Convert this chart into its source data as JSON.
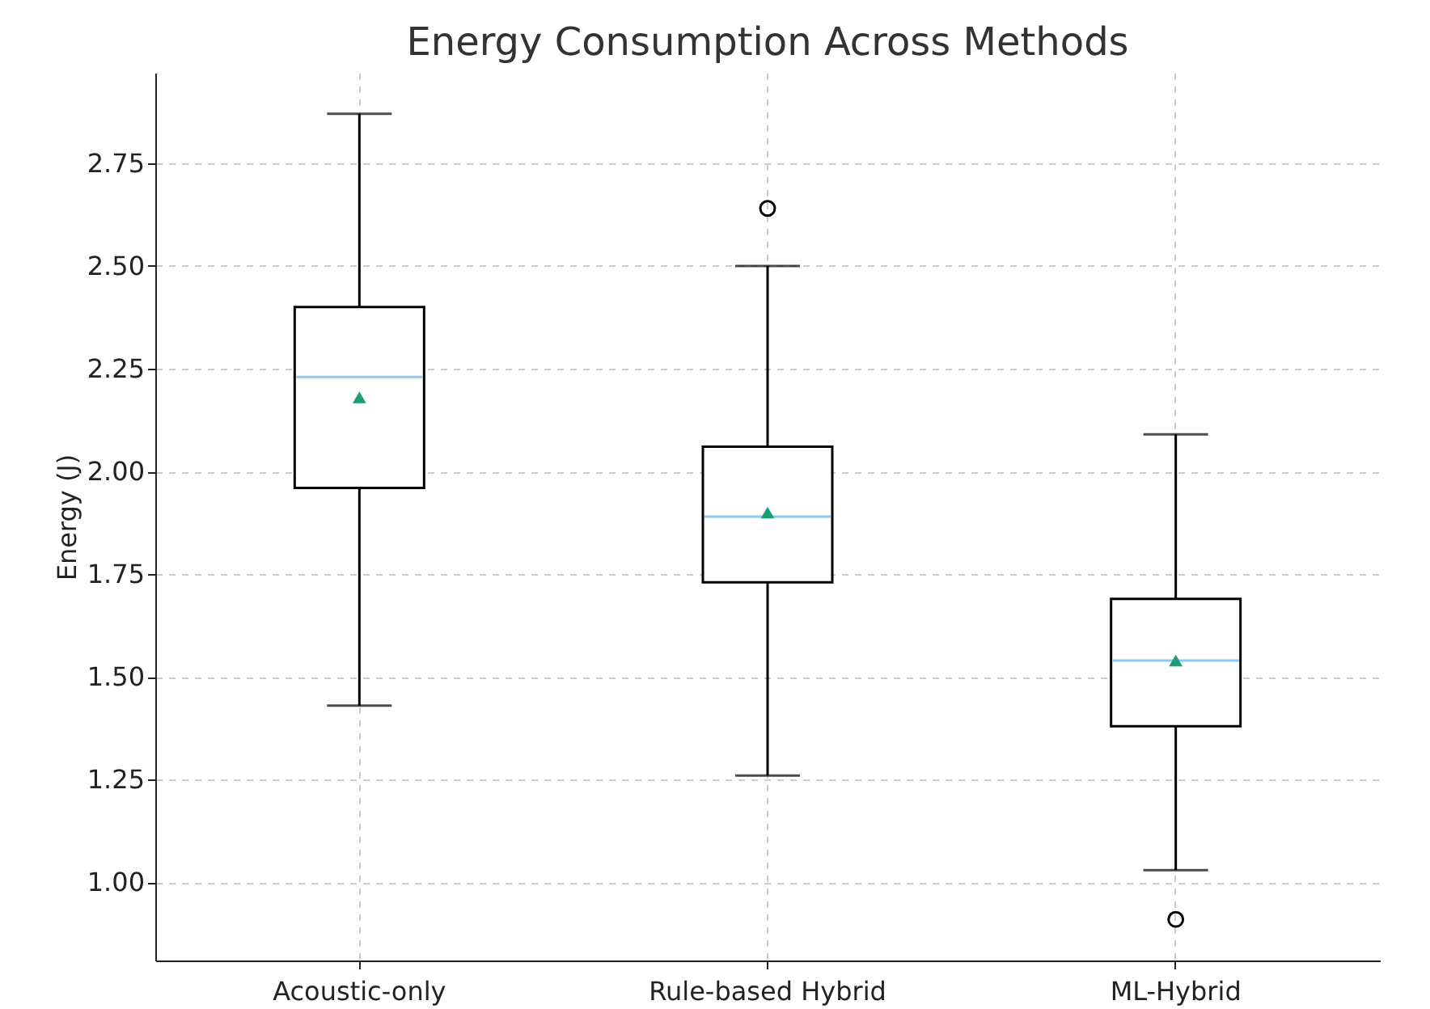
{
  "chart_data": {
    "type": "box",
    "title": "Energy Consumption Across Methods",
    "ylabel": "Energy (J)",
    "categories": [
      "Acoustic-only",
      "Rule-based Hybrid",
      "ML-Hybrid"
    ],
    "boxes": [
      {
        "low": 1.43,
        "q1": 1.96,
        "median": 2.23,
        "q3": 2.4,
        "high": 2.87,
        "mean": 2.18
      },
      {
        "low": 1.26,
        "q1": 1.73,
        "median": 1.89,
        "q3": 2.06,
        "high": 2.5,
        "mean": 1.9,
        "outliers": [
          2.64
        ]
      },
      {
        "low": 1.03,
        "q1": 1.38,
        "median": 1.54,
        "q3": 1.69,
        "high": 2.09,
        "mean": 1.54,
        "outliers": [
          0.91
        ]
      }
    ],
    "ylim": [
      0.81,
      2.97
    ],
    "yticks": [
      {
        "value": 1.0,
        "label": "1.00"
      },
      {
        "value": 1.25,
        "label": "1.25"
      },
      {
        "value": 1.5,
        "label": "1.50"
      },
      {
        "value": 1.75,
        "label": "1.75"
      },
      {
        "value": 2.0,
        "label": "2.00"
      },
      {
        "value": 2.25,
        "label": "2.25"
      },
      {
        "value": 2.5,
        "label": "2.50"
      },
      {
        "value": 2.75,
        "label": "2.75"
      }
    ],
    "grid": true
  }
}
